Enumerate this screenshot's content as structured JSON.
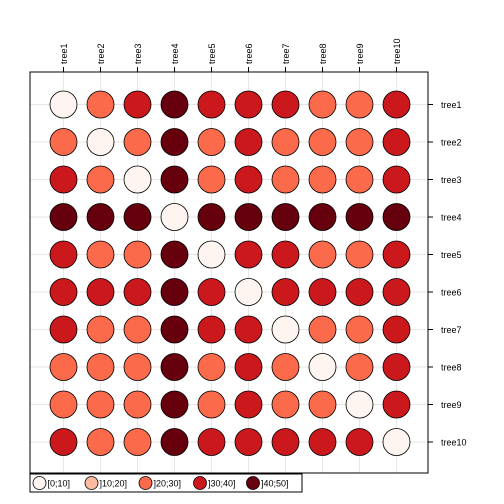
{
  "chart_data": {
    "type": "heatmap",
    "title": "",
    "rows": [
      "tree1",
      "tree2",
      "tree3",
      "tree4",
      "tree5",
      "tree6",
      "tree7",
      "tree8",
      "tree9",
      "tree10"
    ],
    "columns": [
      "tree1",
      "tree2",
      "tree3",
      "tree4",
      "tree5",
      "tree6",
      "tree7",
      "tree8",
      "tree9",
      "tree10"
    ],
    "classes": [
      "[0;10]",
      "]10;20]",
      "]20;30]",
      "]30;40]",
      "]40;50]"
    ],
    "class_colors": [
      "#fff5f0",
      "#fcbba1",
      "#fb6a4a",
      "#cb181d",
      "#67000d"
    ],
    "values": [
      [
        0,
        2,
        3,
        4,
        3,
        3,
        3,
        2,
        2,
        3
      ],
      [
        2,
        0,
        2,
        4,
        2,
        3,
        2,
        2,
        2,
        3
      ],
      [
        3,
        2,
        0,
        4,
        2,
        3,
        2,
        2,
        2,
        3
      ],
      [
        4,
        4,
        4,
        0,
        4,
        4,
        4,
        4,
        4,
        4
      ],
      [
        3,
        2,
        2,
        4,
        0,
        3,
        3,
        2,
        2,
        3
      ],
      [
        3,
        3,
        3,
        4,
        3,
        0,
        3,
        3,
        3,
        3
      ],
      [
        3,
        2,
        2,
        4,
        3,
        3,
        0,
        2,
        2,
        3
      ],
      [
        2,
        2,
        2,
        4,
        2,
        3,
        2,
        0,
        2,
        3
      ],
      [
        2,
        2,
        2,
        4,
        2,
        3,
        2,
        2,
        0,
        3
      ],
      [
        3,
        2,
        2,
        4,
        3,
        3,
        3,
        3,
        3,
        0
      ]
    ],
    "grid": true,
    "legend_position": "bottom"
  }
}
